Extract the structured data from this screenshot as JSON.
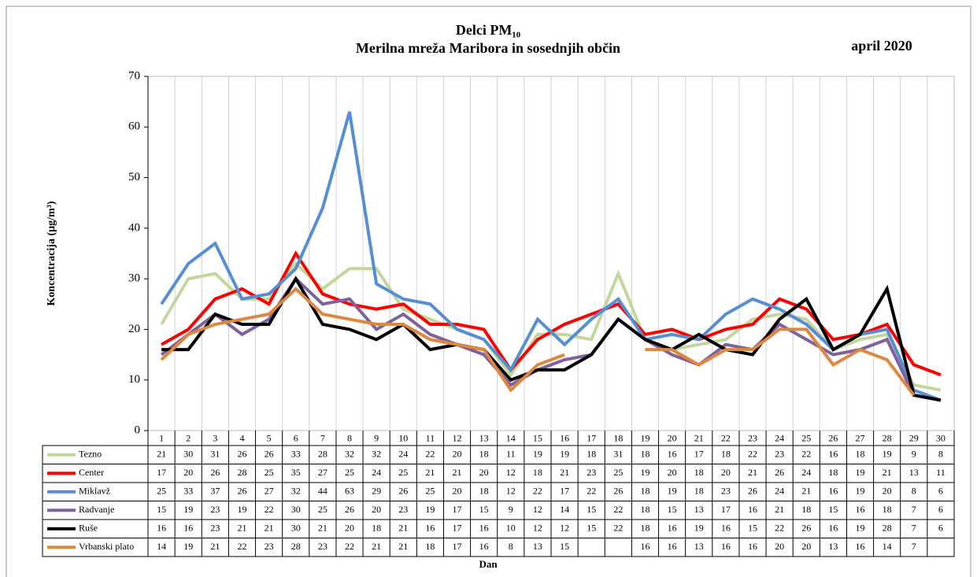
{
  "chart_data": {
    "type": "line",
    "title": "Delci PM₁₀",
    "subtitle": "Merilna mreža Maribora  in sosednjih občin",
    "period": "april 2020",
    "y_label": "Koncentracija  (µg/m³)",
    "x_label": "Dan",
    "categories": [
      "1",
      "2",
      "3",
      "4",
      "5",
      "6",
      "7",
      "8",
      "9",
      "10",
      "11",
      "12",
      "13",
      "14",
      "15",
      "16",
      "17",
      "18",
      "19",
      "20",
      "21",
      "22",
      "23",
      "24",
      "25",
      "26",
      "27",
      "28",
      "29",
      "30"
    ],
    "ylim": [
      0,
      70
    ],
    "yticks": [
      0,
      10,
      20,
      30,
      40,
      50,
      60,
      70
    ],
    "series": [
      {
        "name": "Tezno",
        "color": "#c3d69b",
        "values": [
          21,
          30,
          31,
          26,
          26,
          33,
          28,
          32,
          32,
          24,
          22,
          20,
          18,
          11,
          19,
          19,
          18,
          31,
          18,
          16,
          17,
          18,
          22,
          23,
          22,
          16,
          18,
          19,
          9,
          8
        ]
      },
      {
        "name": "Center",
        "color": "#ff0000",
        "values": [
          17,
          20,
          26,
          28,
          25,
          35,
          27,
          25,
          24,
          25,
          21,
          21,
          20,
          12,
          18,
          21,
          23,
          25,
          19,
          20,
          18,
          20,
          21,
          26,
          24,
          18,
          19,
          21,
          13,
          11
        ]
      },
      {
        "name": "Miklavž",
        "color": "#558ed5",
        "values": [
          25,
          33,
          37,
          26,
          27,
          32,
          44,
          63,
          29,
          26,
          25,
          20,
          18,
          12,
          22,
          17,
          22,
          26,
          18,
          19,
          18,
          23,
          26,
          24,
          21,
          16,
          19,
          20,
          8,
          6
        ]
      },
      {
        "name": "Radvanje",
        "color": "#7f619e",
        "values": [
          15,
          19,
          23,
          19,
          22,
          30,
          25,
          26,
          20,
          23,
          19,
          17,
          15,
          9,
          12,
          14,
          15,
          22,
          18,
          15,
          13,
          17,
          16,
          21,
          18,
          15,
          16,
          18,
          7,
          6
        ]
      },
      {
        "name": "Ruše",
        "color": "#000000",
        "values": [
          16,
          16,
          23,
          21,
          21,
          30,
          21,
          20,
          18,
          21,
          16,
          17,
          16,
          10,
          12,
          12,
          15,
          22,
          18,
          16,
          19,
          16,
          15,
          22,
          26,
          16,
          19,
          28,
          7,
          6
        ]
      },
      {
        "name": "Vrbanski plato",
        "color": "#e0873f",
        "values": [
          14,
          19,
          21,
          22,
          23,
          28,
          23,
          22,
          21,
          21,
          18,
          17,
          16,
          8,
          13,
          15,
          null,
          null,
          16,
          16,
          13,
          16,
          16,
          20,
          20,
          13,
          16,
          14,
          7,
          null
        ]
      }
    ]
  }
}
